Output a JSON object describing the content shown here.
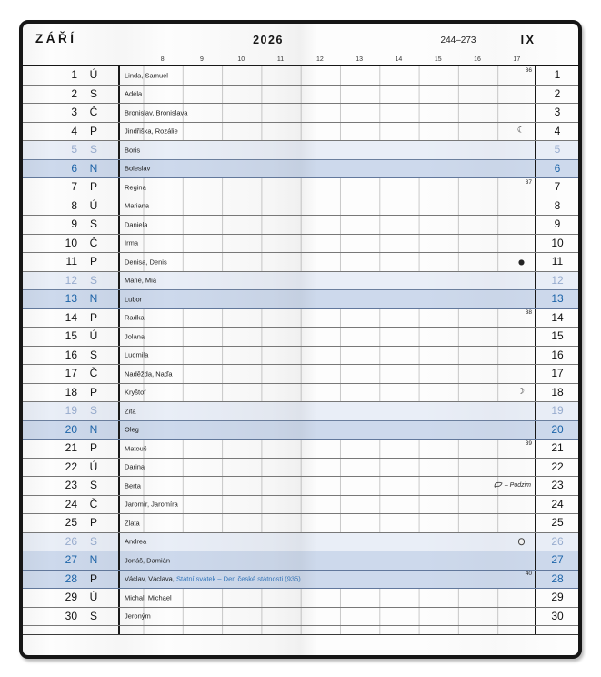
{
  "header": {
    "month": "ZÁŘÍ",
    "year": "2026",
    "day_range": "244–273",
    "month_roman": "IX"
  },
  "hours": [
    "8",
    "9",
    "10",
    "11",
    "12",
    "13",
    "14",
    "15",
    "16",
    "17"
  ],
  "colors": {
    "frame": "#161616",
    "saturday_bg": "#e9eef7",
    "saturday_text": "#97acce",
    "sunday_bg": "#cdd9ec",
    "sunday_text": "#1c64a9",
    "holiday_text": "#2f73ba",
    "grid_line": "#c9c9c9",
    "row_line": "#787878"
  },
  "moon_glyphs": {
    "last-quarter": "☾",
    "new": "●",
    "first-quarter": "☽",
    "full": "○"
  },
  "days": [
    {
      "day": "1",
      "weekday": "Ú",
      "names": "Linda, Samuel",
      "type": "weekday",
      "week": "36"
    },
    {
      "day": "2",
      "weekday": "S",
      "names": "Adéla",
      "type": "weekday"
    },
    {
      "day": "3",
      "weekday": "Č",
      "names": "Bronislav, Bronislava",
      "type": "weekday"
    },
    {
      "day": "4",
      "weekday": "P",
      "names": "Jindřiška, Rozálie",
      "type": "weekday",
      "moon": "last-quarter"
    },
    {
      "day": "5",
      "weekday": "S",
      "names": "Boris",
      "type": "saturday"
    },
    {
      "day": "6",
      "weekday": "N",
      "names": "Boleslav",
      "type": "sunday"
    },
    {
      "day": "7",
      "weekday": "P",
      "names": "Regina",
      "type": "weekday",
      "week": "37"
    },
    {
      "day": "8",
      "weekday": "Ú",
      "names": "Mariana",
      "type": "weekday"
    },
    {
      "day": "9",
      "weekday": "S",
      "names": "Daniela",
      "type": "weekday"
    },
    {
      "day": "10",
      "weekday": "Č",
      "names": "Irma",
      "type": "weekday"
    },
    {
      "day": "11",
      "weekday": "P",
      "names": "Denisa, Denis",
      "type": "weekday",
      "moon": "new"
    },
    {
      "day": "12",
      "weekday": "S",
      "names": "Marie, Mia",
      "type": "saturday"
    },
    {
      "day": "13",
      "weekday": "N",
      "names": "Lubor",
      "type": "sunday"
    },
    {
      "day": "14",
      "weekday": "P",
      "names": "Radka",
      "type": "weekday",
      "week": "38"
    },
    {
      "day": "15",
      "weekday": "Ú",
      "names": "Jolana",
      "type": "weekday"
    },
    {
      "day": "16",
      "weekday": "S",
      "names": "Ludmila",
      "type": "weekday"
    },
    {
      "day": "17",
      "weekday": "Č",
      "names": "Naděžda, Naďa",
      "type": "weekday"
    },
    {
      "day": "18",
      "weekday": "P",
      "names": "Kryštof",
      "type": "weekday",
      "moon": "first-quarter"
    },
    {
      "day": "19",
      "weekday": "S",
      "names": "Zita",
      "type": "saturday"
    },
    {
      "day": "20",
      "weekday": "N",
      "names": "Oleg",
      "type": "sunday"
    },
    {
      "day": "21",
      "weekday": "P",
      "names": "Matouš",
      "type": "weekday",
      "week": "39"
    },
    {
      "day": "22",
      "weekday": "Ú",
      "names": "Darina",
      "type": "weekday"
    },
    {
      "day": "23",
      "weekday": "S",
      "names": "Berta",
      "type": "weekday",
      "note": "– Podzim"
    },
    {
      "day": "24",
      "weekday": "Č",
      "names": "Jaromír, Jaromíra",
      "type": "weekday"
    },
    {
      "day": "25",
      "weekday": "P",
      "names": "Zlata",
      "type": "weekday"
    },
    {
      "day": "26",
      "weekday": "S",
      "names": "Andrea",
      "type": "saturday",
      "moon": "full"
    },
    {
      "day": "27",
      "weekday": "N",
      "names": "Jonáš, Damián",
      "type": "sunday"
    },
    {
      "day": "28",
      "weekday": "P",
      "names": "Václav, Václava,",
      "holiday": "Státní svátek – Den české státnosti (935)",
      "type": "holiday",
      "week": "40"
    },
    {
      "day": "29",
      "weekday": "Ú",
      "names": "Michal, Michael",
      "type": "weekday"
    },
    {
      "day": "30",
      "weekday": "S",
      "names": "Jeroným",
      "type": "weekday"
    }
  ]
}
